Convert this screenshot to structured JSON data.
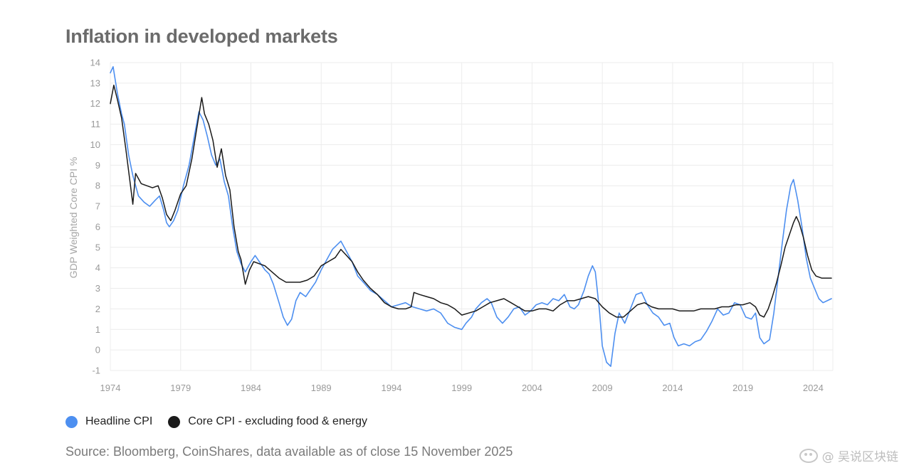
{
  "title": "Inflation in developed markets",
  "source": "Source: Bloomberg, CoinShares, data available as of close 15 November 2025",
  "watermark": "@ 吴说区块链",
  "colors": {
    "headline": "#4d8ff0",
    "core": "#1a1a1a",
    "grid": "#ececec",
    "tick": "#9a9a9a"
  },
  "chart_data": {
    "type": "line",
    "title": "Inflation in developed markets",
    "ylabel": "GDP Weighted Core CPI %",
    "xlabel": "",
    "xlim": [
      1974,
      2025.4
    ],
    "ylim": [
      -1,
      14
    ],
    "x_ticks": [
      1974,
      1979,
      1984,
      1989,
      1994,
      1999,
      2004,
      2009,
      2014,
      2019,
      2024
    ],
    "y_ticks": [
      -1,
      0,
      1,
      2,
      3,
      4,
      5,
      6,
      7,
      8,
      9,
      10,
      11,
      12,
      13,
      14
    ],
    "grid": true,
    "legend": "bottom-left",
    "series": [
      {
        "name": "Headline CPI",
        "color": "#4d8ff0",
        "points": [
          [
            1974.0,
            13.5
          ],
          [
            1974.2,
            13.8
          ],
          [
            1974.5,
            12.5
          ],
          [
            1974.8,
            11.5
          ],
          [
            1975.0,
            11.0
          ],
          [
            1975.3,
            9.5
          ],
          [
            1975.6,
            8.5
          ],
          [
            1976.0,
            7.5
          ],
          [
            1976.4,
            7.2
          ],
          [
            1976.8,
            7.0
          ],
          [
            1977.2,
            7.3
          ],
          [
            1977.5,
            7.5
          ],
          [
            1977.8,
            6.8
          ],
          [
            1978.0,
            6.2
          ],
          [
            1978.2,
            6.0
          ],
          [
            1978.5,
            6.3
          ],
          [
            1978.8,
            6.8
          ],
          [
            1979.2,
            8.0
          ],
          [
            1979.6,
            9.0
          ],
          [
            1980.0,
            10.5
          ],
          [
            1980.3,
            11.6
          ],
          [
            1980.6,
            11.2
          ],
          [
            1980.9,
            10.4
          ],
          [
            1981.2,
            9.5
          ],
          [
            1981.5,
            9.0
          ],
          [
            1981.8,
            9.3
          ],
          [
            1982.1,
            8.2
          ],
          [
            1982.4,
            7.5
          ],
          [
            1982.7,
            6.0
          ],
          [
            1983.0,
            4.8
          ],
          [
            1983.3,
            4.2
          ],
          [
            1983.6,
            3.8
          ],
          [
            1984.0,
            4.3
          ],
          [
            1984.3,
            4.6
          ],
          [
            1984.6,
            4.3
          ],
          [
            1985.0,
            3.9
          ],
          [
            1985.3,
            3.7
          ],
          [
            1985.6,
            3.2
          ],
          [
            1986.0,
            2.3
          ],
          [
            1986.3,
            1.6
          ],
          [
            1986.6,
            1.2
          ],
          [
            1986.9,
            1.5
          ],
          [
            1987.2,
            2.4
          ],
          [
            1987.5,
            2.8
          ],
          [
            1987.9,
            2.6
          ],
          [
            1988.2,
            2.9
          ],
          [
            1988.6,
            3.3
          ],
          [
            1989.0,
            3.9
          ],
          [
            1989.4,
            4.4
          ],
          [
            1989.8,
            4.9
          ],
          [
            1990.1,
            5.1
          ],
          [
            1990.4,
            5.3
          ],
          [
            1990.8,
            4.8
          ],
          [
            1991.2,
            4.3
          ],
          [
            1991.6,
            3.6
          ],
          [
            1992.0,
            3.3
          ],
          [
            1992.5,
            2.9
          ],
          [
            1993.0,
            2.7
          ],
          [
            1993.5,
            2.4
          ],
          [
            1994.0,
            2.1
          ],
          [
            1994.5,
            2.2
          ],
          [
            1995.0,
            2.3
          ],
          [
            1995.5,
            2.1
          ],
          [
            1996.0,
            2.0
          ],
          [
            1996.5,
            1.9
          ],
          [
            1997.0,
            2.0
          ],
          [
            1997.5,
            1.8
          ],
          [
            1998.0,
            1.3
          ],
          [
            1998.5,
            1.1
          ],
          [
            1999.0,
            1.0
          ],
          [
            1999.3,
            1.3
          ],
          [
            1999.7,
            1.6
          ],
          [
            2000.0,
            2.0
          ],
          [
            2000.4,
            2.3
          ],
          [
            2000.8,
            2.5
          ],
          [
            2001.1,
            2.3
          ],
          [
            2001.5,
            1.6
          ],
          [
            2001.9,
            1.3
          ],
          [
            2002.3,
            1.6
          ],
          [
            2002.7,
            2.0
          ],
          [
            2003.1,
            2.1
          ],
          [
            2003.5,
            1.7
          ],
          [
            2003.9,
            1.9
          ],
          [
            2004.3,
            2.2
          ],
          [
            2004.7,
            2.3
          ],
          [
            2005.1,
            2.2
          ],
          [
            2005.5,
            2.5
          ],
          [
            2005.9,
            2.4
          ],
          [
            2006.3,
            2.7
          ],
          [
            2006.7,
            2.1
          ],
          [
            2007.0,
            2.0
          ],
          [
            2007.3,
            2.2
          ],
          [
            2007.7,
            2.9
          ],
          [
            2008.0,
            3.6
          ],
          [
            2008.3,
            4.1
          ],
          [
            2008.5,
            3.8
          ],
          [
            2008.8,
            1.9
          ],
          [
            2009.0,
            0.2
          ],
          [
            2009.3,
            -0.6
          ],
          [
            2009.6,
            -0.8
          ],
          [
            2009.9,
            0.8
          ],
          [
            2010.2,
            1.8
          ],
          [
            2010.6,
            1.3
          ],
          [
            2011.0,
            2.0
          ],
          [
            2011.4,
            2.7
          ],
          [
            2011.8,
            2.8
          ],
          [
            2012.2,
            2.2
          ],
          [
            2012.6,
            1.8
          ],
          [
            2013.0,
            1.6
          ],
          [
            2013.4,
            1.2
          ],
          [
            2013.8,
            1.3
          ],
          [
            2014.1,
            0.6
          ],
          [
            2014.4,
            0.2
          ],
          [
            2014.8,
            0.3
          ],
          [
            2015.2,
            0.2
          ],
          [
            2015.6,
            0.4
          ],
          [
            2016.0,
            0.5
          ],
          [
            2016.4,
            0.9
          ],
          [
            2016.8,
            1.4
          ],
          [
            2017.2,
            2.0
          ],
          [
            2017.6,
            1.7
          ],
          [
            2018.0,
            1.8
          ],
          [
            2018.4,
            2.3
          ],
          [
            2018.8,
            2.2
          ],
          [
            2019.2,
            1.6
          ],
          [
            2019.6,
            1.5
          ],
          [
            2019.9,
            1.8
          ],
          [
            2020.2,
            0.6
          ],
          [
            2020.5,
            0.3
          ],
          [
            2020.9,
            0.5
          ],
          [
            2021.2,
            1.8
          ],
          [
            2021.5,
            3.5
          ],
          [
            2021.8,
            5.2
          ],
          [
            2022.1,
            6.8
          ],
          [
            2022.4,
            8.0
          ],
          [
            2022.6,
            8.3
          ],
          [
            2022.9,
            7.3
          ],
          [
            2023.2,
            6.0
          ],
          [
            2023.5,
            4.5
          ],
          [
            2023.8,
            3.5
          ],
          [
            2024.1,
            3.0
          ],
          [
            2024.4,
            2.5
          ],
          [
            2024.7,
            2.3
          ],
          [
            2025.0,
            2.4
          ],
          [
            2025.3,
            2.5
          ]
        ]
      },
      {
        "name": "Core CPI - excluding food & energy",
        "color": "#1a1a1a",
        "points": [
          [
            1974.0,
            12.0
          ],
          [
            1974.25,
            12.9
          ],
          [
            1974.5,
            12.2
          ],
          [
            1974.8,
            11.3
          ],
          [
            1975.1,
            9.8
          ],
          [
            1975.4,
            8.2
          ],
          [
            1975.6,
            7.1
          ],
          [
            1975.8,
            8.6
          ],
          [
            1976.2,
            8.1
          ],
          [
            1976.6,
            8.0
          ],
          [
            1977.0,
            7.9
          ],
          [
            1977.4,
            8.0
          ],
          [
            1977.7,
            7.4
          ],
          [
            1978.0,
            6.6
          ],
          [
            1978.3,
            6.3
          ],
          [
            1978.6,
            6.8
          ],
          [
            1979.0,
            7.6
          ],
          [
            1979.4,
            8.0
          ],
          [
            1979.8,
            9.3
          ],
          [
            1980.2,
            11.0
          ],
          [
            1980.5,
            12.3
          ],
          [
            1980.7,
            11.5
          ],
          [
            1981.0,
            11.0
          ],
          [
            1981.3,
            10.2
          ],
          [
            1981.6,
            8.9
          ],
          [
            1981.9,
            9.8
          ],
          [
            1982.2,
            8.5
          ],
          [
            1982.5,
            7.8
          ],
          [
            1982.8,
            6.0
          ],
          [
            1983.1,
            4.8
          ],
          [
            1983.3,
            4.4
          ],
          [
            1983.6,
            3.2
          ],
          [
            1983.9,
            3.9
          ],
          [
            1984.2,
            4.3
          ],
          [
            1984.6,
            4.2
          ],
          [
            1985.0,
            4.1
          ],
          [
            1985.5,
            3.8
          ],
          [
            1986.0,
            3.5
          ],
          [
            1986.5,
            3.3
          ],
          [
            1987.0,
            3.3
          ],
          [
            1987.5,
            3.3
          ],
          [
            1988.0,
            3.4
          ],
          [
            1988.5,
            3.6
          ],
          [
            1989.0,
            4.1
          ],
          [
            1989.5,
            4.3
          ],
          [
            1990.0,
            4.5
          ],
          [
            1990.4,
            4.9
          ],
          [
            1990.8,
            4.6
          ],
          [
            1991.2,
            4.3
          ],
          [
            1991.6,
            3.8
          ],
          [
            1992.0,
            3.4
          ],
          [
            1992.5,
            3.0
          ],
          [
            1993.0,
            2.7
          ],
          [
            1993.5,
            2.3
          ],
          [
            1994.0,
            2.1
          ],
          [
            1994.5,
            2.0
          ],
          [
            1995.0,
            2.0
          ],
          [
            1995.4,
            2.1
          ],
          [
            1995.6,
            2.8
          ],
          [
            1996.0,
            2.7
          ],
          [
            1996.5,
            2.6
          ],
          [
            1997.0,
            2.5
          ],
          [
            1997.5,
            2.3
          ],
          [
            1998.0,
            2.2
          ],
          [
            1998.5,
            2.0
          ],
          [
            1999.0,
            1.7
          ],
          [
            1999.5,
            1.8
          ],
          [
            2000.0,
            1.9
          ],
          [
            2000.5,
            2.1
          ],
          [
            2001.0,
            2.3
          ],
          [
            2001.5,
            2.4
          ],
          [
            2002.0,
            2.5
          ],
          [
            2002.5,
            2.3
          ],
          [
            2003.0,
            2.1
          ],
          [
            2003.5,
            1.9
          ],
          [
            2004.0,
            1.9
          ],
          [
            2004.5,
            2.0
          ],
          [
            2005.0,
            2.0
          ],
          [
            2005.5,
            1.9
          ],
          [
            2006.0,
            2.2
          ],
          [
            2006.5,
            2.4
          ],
          [
            2007.0,
            2.4
          ],
          [
            2007.5,
            2.5
          ],
          [
            2008.0,
            2.6
          ],
          [
            2008.5,
            2.5
          ],
          [
            2009.0,
            2.1
          ],
          [
            2009.5,
            1.8
          ],
          [
            2010.0,
            1.6
          ],
          [
            2010.5,
            1.6
          ],
          [
            2011.0,
            1.9
          ],
          [
            2011.5,
            2.2
          ],
          [
            2012.0,
            2.3
          ],
          [
            2012.5,
            2.1
          ],
          [
            2013.0,
            2.0
          ],
          [
            2013.5,
            2.0
          ],
          [
            2014.0,
            2.0
          ],
          [
            2014.5,
            1.9
          ],
          [
            2015.0,
            1.9
          ],
          [
            2015.5,
            1.9
          ],
          [
            2016.0,
            2.0
          ],
          [
            2016.5,
            2.0
          ],
          [
            2017.0,
            2.0
          ],
          [
            2017.5,
            2.1
          ],
          [
            2018.0,
            2.1
          ],
          [
            2018.5,
            2.2
          ],
          [
            2019.0,
            2.2
          ],
          [
            2019.5,
            2.3
          ],
          [
            2019.9,
            2.1
          ],
          [
            2020.2,
            1.7
          ],
          [
            2020.5,
            1.6
          ],
          [
            2020.8,
            2.0
          ],
          [
            2021.1,
            2.6
          ],
          [
            2021.4,
            3.3
          ],
          [
            2021.7,
            4.1
          ],
          [
            2022.0,
            5.0
          ],
          [
            2022.3,
            5.6
          ],
          [
            2022.6,
            6.2
          ],
          [
            2022.8,
            6.5
          ],
          [
            2023.0,
            6.2
          ],
          [
            2023.3,
            5.5
          ],
          [
            2023.6,
            4.6
          ],
          [
            2023.9,
            3.9
          ],
          [
            2024.2,
            3.6
          ],
          [
            2024.6,
            3.5
          ],
          [
            2025.0,
            3.5
          ],
          [
            2025.3,
            3.5
          ]
        ]
      }
    ]
  }
}
